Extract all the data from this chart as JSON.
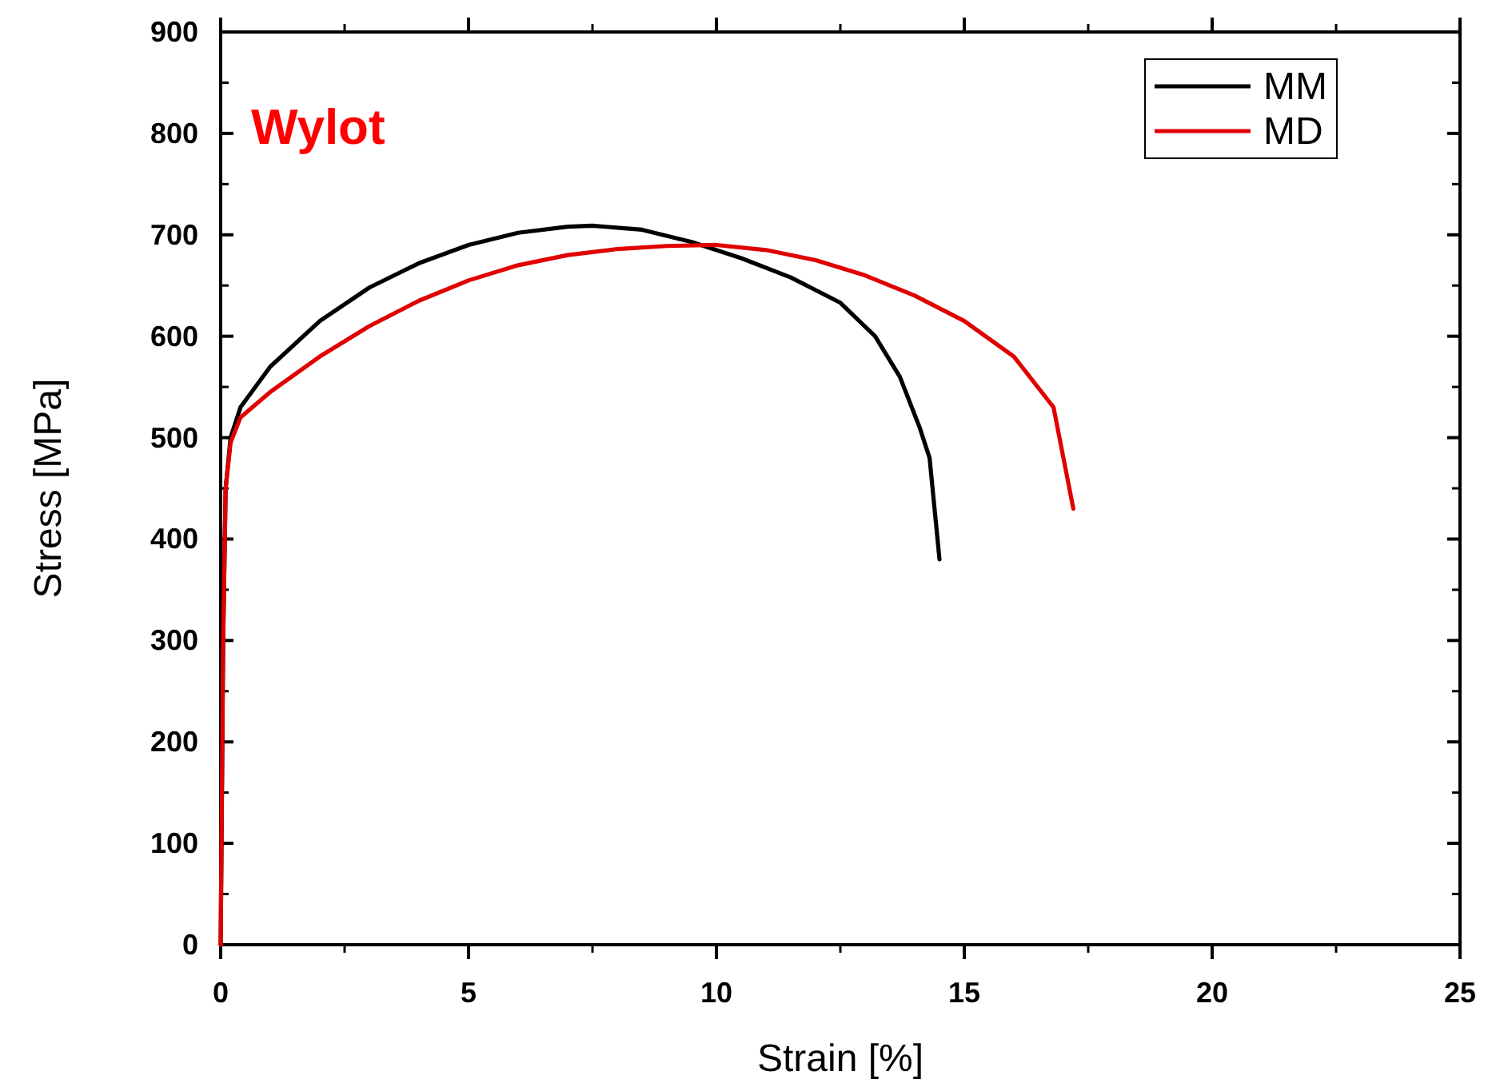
{
  "chart_data": {
    "type": "line",
    "xlabel": "Strain [%]",
    "ylabel": "Stress [MPa]",
    "annotations": [
      "Wylot"
    ],
    "xlim": [
      0,
      25
    ],
    "xticks": [
      0,
      5,
      10,
      15,
      20,
      25
    ],
    "ylim": [
      0,
      900
    ],
    "yticks": [
      0,
      100,
      200,
      300,
      400,
      500,
      600,
      700,
      800,
      900
    ],
    "grid": false,
    "legend": "top right",
    "marker": "none",
    "line_style": "solid",
    "series": [
      {
        "name": "MM",
        "color": "#000000",
        "x": [
          0,
          0.05,
          0.1,
          0.2,
          0.4,
          1,
          2,
          3,
          4,
          5,
          6,
          7,
          7.5,
          8.5,
          9.5,
          10.5,
          11.5,
          12.5,
          13.2,
          13.7,
          14.1,
          14.3,
          14.5
        ],
        "values": [
          0,
          300,
          450,
          500,
          530,
          570,
          615,
          648,
          672,
          690,
          702,
          708,
          709,
          705,
          693,
          677,
          658,
          633,
          600,
          560,
          510,
          480,
          380
        ]
      },
      {
        "name": "MD",
        "color": "#e00000",
        "x": [
          0,
          0.05,
          0.1,
          0.2,
          0.4,
          1,
          2,
          3,
          4,
          5,
          6,
          7,
          8,
          9,
          10,
          11,
          12,
          13,
          14,
          15,
          16,
          16.8,
          17.2
        ],
        "values": [
          0,
          300,
          450,
          495,
          520,
          545,
          580,
          610,
          635,
          655,
          670,
          680,
          686,
          689,
          690,
          685,
          675,
          660,
          640,
          615,
          580,
          530,
          430
        ]
      }
    ]
  }
}
